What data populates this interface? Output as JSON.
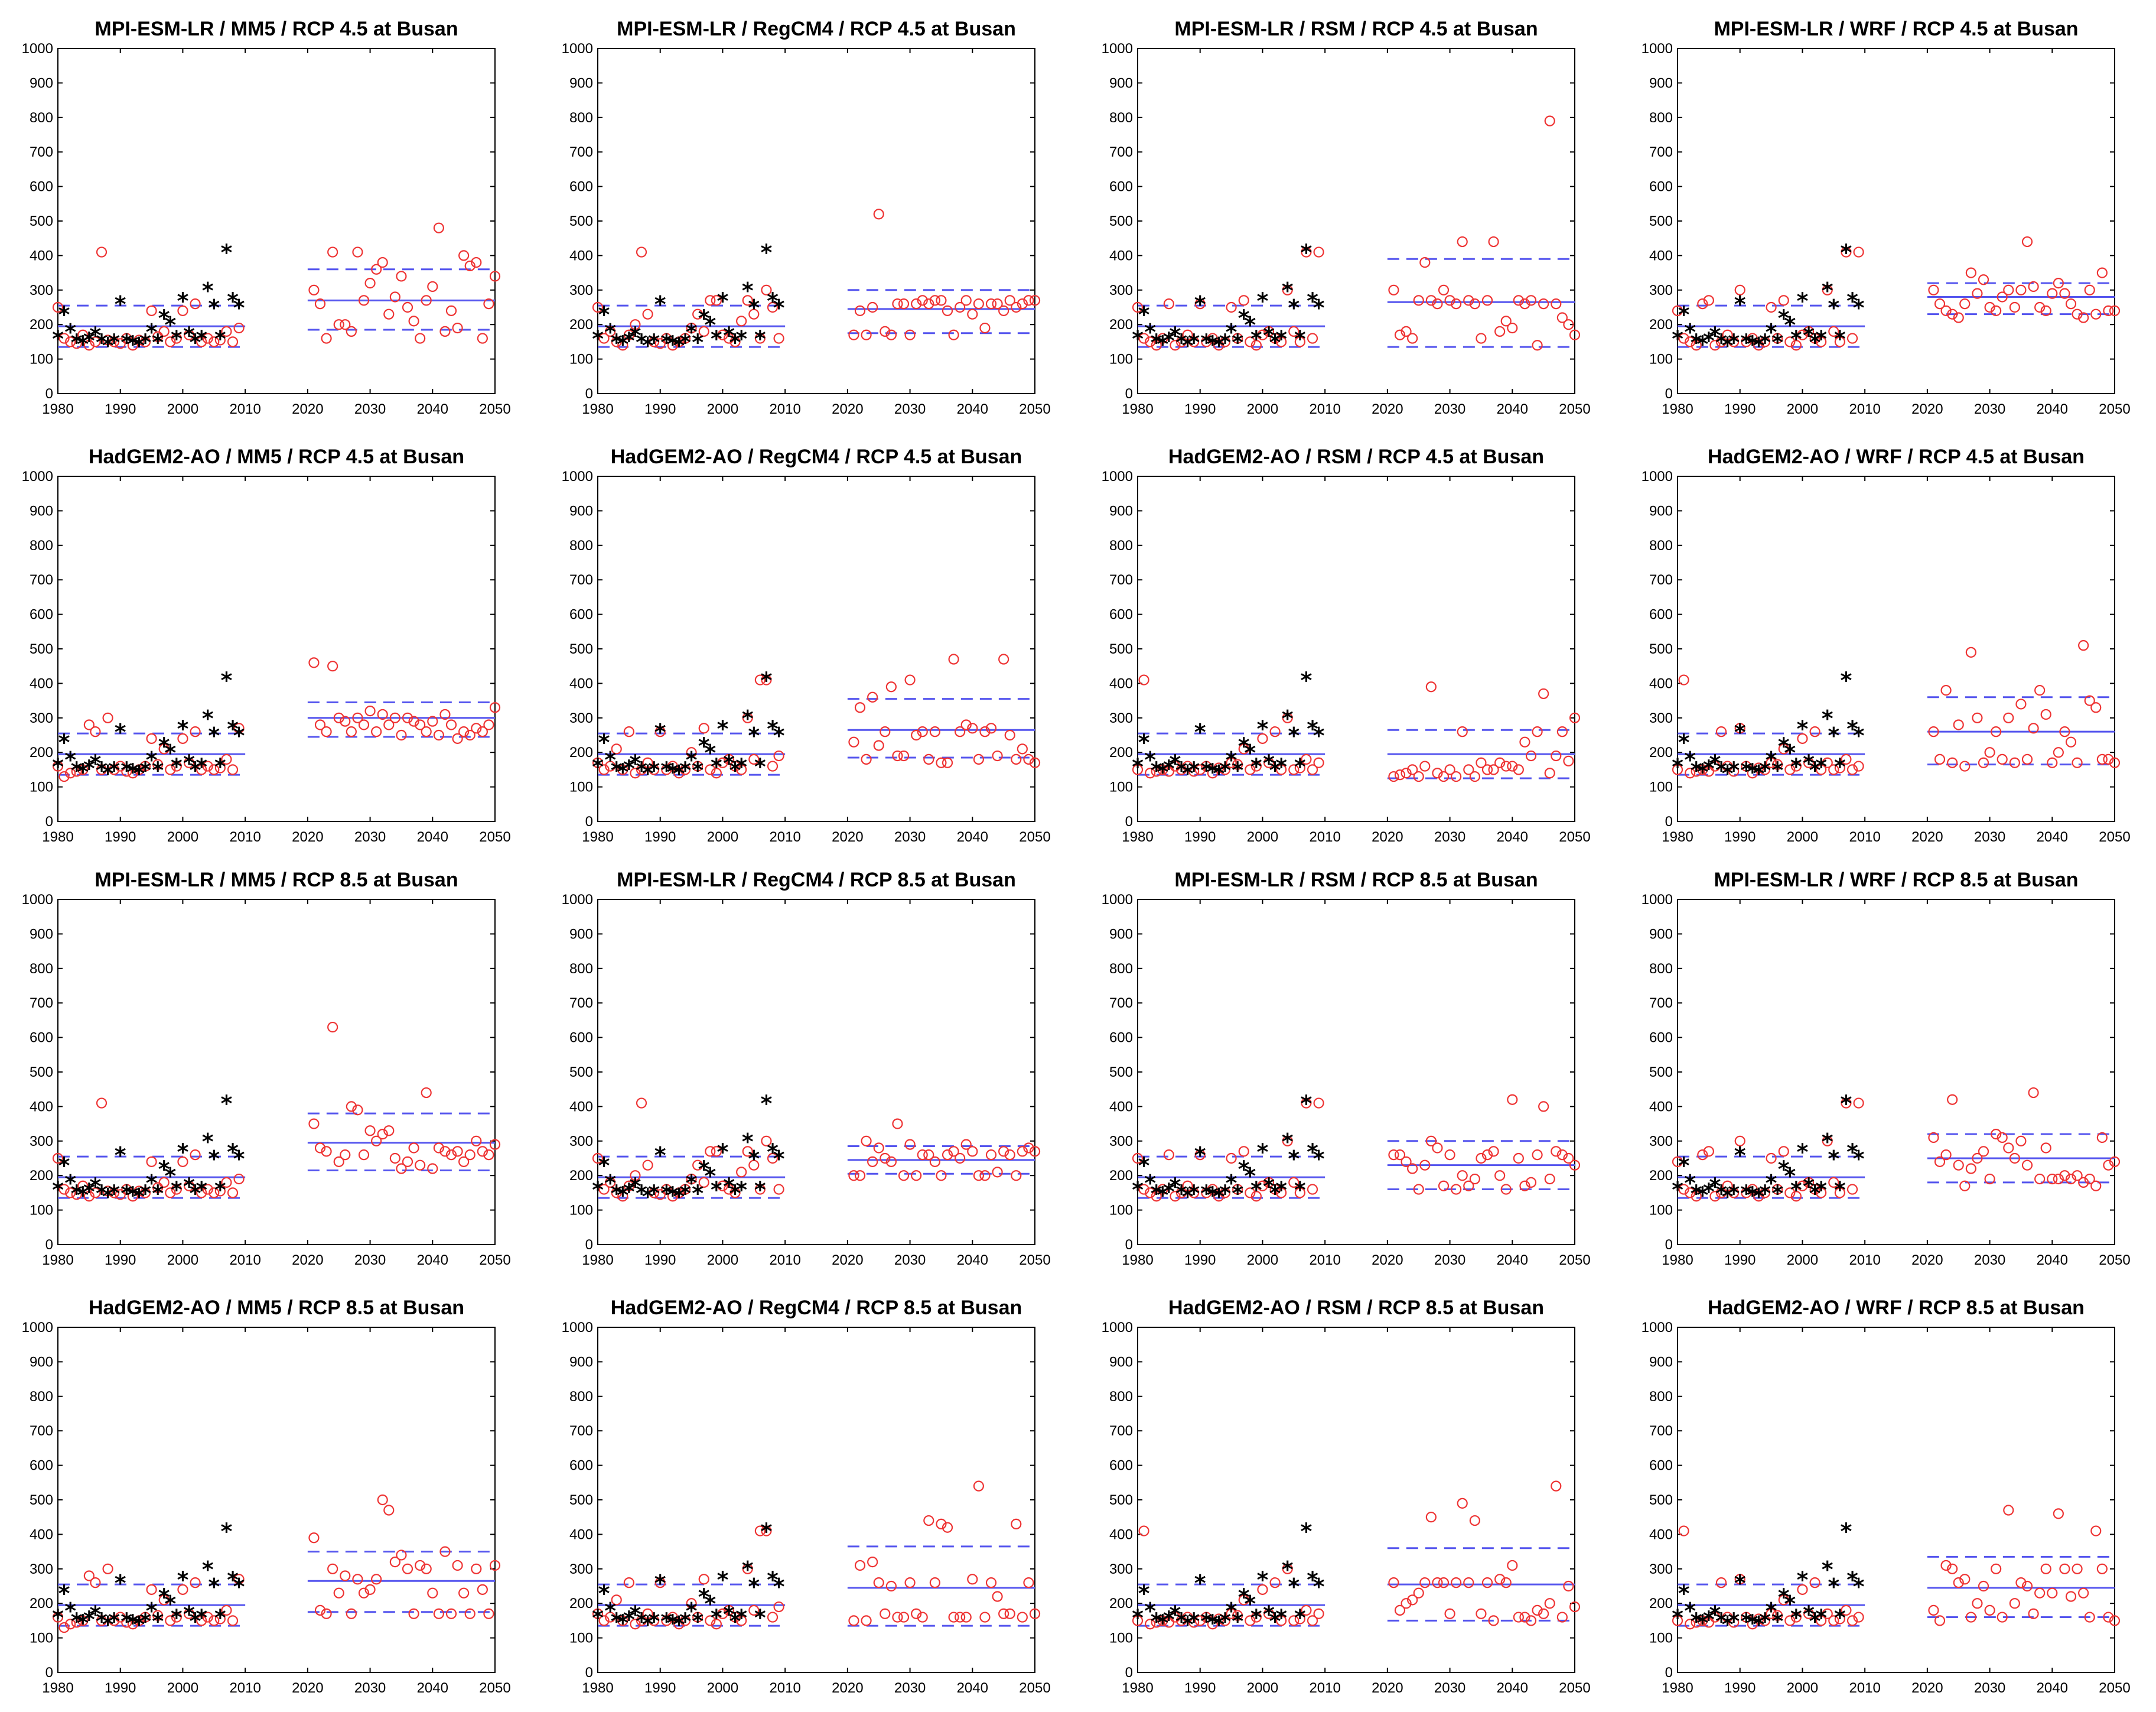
{
  "chart_data": {
    "type": "scatter",
    "grid": false,
    "xlim": [
      1980,
      2050
    ],
    "ylim": [
      0,
      1000
    ],
    "xticks": [
      1980,
      1990,
      2000,
      2010,
      2020,
      2030,
      2040,
      2050
    ],
    "yticks": [
      0,
      100,
      200,
      300,
      400,
      500,
      600,
      700,
      800,
      900,
      1000
    ],
    "observed": {
      "x": [
        1980,
        1981,
        1982,
        1983,
        1984,
        1985,
        1986,
        1987,
        1988,
        1989,
        1990,
        1991,
        1992,
        1993,
        1994,
        1995,
        1996,
        1997,
        1998,
        1999,
        2000,
        2001,
        2002,
        2003,
        2004,
        2005,
        2006,
        2007,
        2008,
        2009
      ],
      "y": [
        160,
        230,
        180,
        150,
        145,
        155,
        170,
        150,
        140,
        150,
        260,
        150,
        145,
        140,
        150,
        180,
        150,
        220,
        200,
        160,
        270,
        170,
        150,
        160,
        300,
        250,
        160,
        410,
        270,
        250
      ],
      "mean": 195,
      "upper": 255,
      "lower": 135
    },
    "panels": [
      {
        "title": "MPI-ESM-LR / MM5 / RCP 4.5 at Busan",
        "hist": [
          250,
          160,
          150,
          145,
          170,
          140,
          150,
          410,
          155,
          150,
          145,
          160,
          140,
          155,
          150,
          240,
          165,
          180,
          150,
          160,
          240,
          170,
          260,
          150,
          160,
          150,
          155,
          180,
          150,
          190
        ],
        "proj": [
          300,
          260,
          160,
          410,
          200,
          200,
          180,
          410,
          270,
          320,
          360,
          380,
          230,
          280,
          340,
          250,
          210,
          160,
          270,
          310,
          480,
          180,
          240,
          190,
          400,
          370,
          380,
          160,
          260,
          340
        ],
        "mean": 270,
        "upper": 360,
        "lower": 185
      },
      {
        "title": "MPI-ESM-LR / RegCM4 / RCP 4.5 at Busan",
        "hist": [
          250,
          160,
          180,
          150,
          140,
          170,
          200,
          410,
          230,
          150,
          145,
          160,
          140,
          150,
          160,
          190,
          230,
          180,
          270,
          270,
          170,
          160,
          150,
          210,
          270,
          230,
          160,
          300,
          250,
          160
        ],
        "proj": [
          170,
          240,
          170,
          250,
          520,
          180,
          170,
          260,
          260,
          170,
          260,
          270,
          260,
          270,
          270,
          240,
          170,
          250,
          270,
          230,
          260,
          190,
          260,
          260,
          240,
          270,
          250,
          260,
          270,
          270
        ],
        "mean": 245,
        "upper": 300,
        "lower": 175
      },
      {
        "title": "MPI-ESM-LR / RSM / RCP 4.5 at Busan",
        "hist": [
          250,
          160,
          150,
          140,
          160,
          260,
          140,
          150,
          170,
          150,
          260,
          150,
          160,
          140,
          150,
          250,
          160,
          270,
          150,
          140,
          170,
          180,
          160,
          150,
          300,
          180,
          150,
          410,
          160,
          410
        ],
        "proj": [
          300,
          170,
          180,
          160,
          270,
          380,
          270,
          260,
          300,
          270,
          260,
          440,
          270,
          260,
          160,
          270,
          440,
          180,
          210,
          190,
          270,
          260,
          270,
          140,
          260,
          790,
          260,
          220,
          200,
          170
        ],
        "mean": 265,
        "upper": 390,
        "lower": 135
      },
      {
        "title": "MPI-ESM-LR / WRF / RCP 4.5 at Busan",
        "hist": [
          240,
          160,
          150,
          140,
          260,
          270,
          140,
          150,
          170,
          150,
          300,
          150,
          160,
          140,
          150,
          250,
          160,
          270,
          150,
          140,
          170,
          180,
          160,
          150,
          300,
          180,
          150,
          410,
          160,
          410
        ],
        "proj": [
          300,
          260,
          240,
          230,
          220,
          260,
          350,
          290,
          330,
          250,
          240,
          280,
          300,
          250,
          300,
          440,
          310,
          250,
          240,
          290,
          320,
          290,
          260,
          230,
          220,
          300,
          230,
          350,
          240,
          240
        ],
        "mean": 280,
        "upper": 320,
        "lower": 230
      },
      {
        "title": "HadGEM2-AO / MM5 / RCP 4.5 at Busan",
        "hist": [
          160,
          130,
          140,
          145,
          150,
          280,
          260,
          150,
          300,
          150,
          160,
          145,
          140,
          150,
          160,
          240,
          165,
          210,
          150,
          160,
          240,
          170,
          260,
          150,
          160,
          150,
          155,
          180,
          150,
          270
        ],
        "proj": [
          460,
          280,
          260,
          450,
          300,
          290,
          260,
          300,
          280,
          320,
          260,
          310,
          280,
          300,
          250,
          300,
          290,
          280,
          260,
          290,
          250,
          310,
          280,
          240,
          260,
          250,
          270,
          260,
          280,
          330
        ],
        "mean": 300,
        "upper": 345,
        "lower": 245
      },
      {
        "title": "HadGEM2-AO / RegCM4 / RCP 4.5 at Busan",
        "hist": [
          170,
          150,
          160,
          210,
          150,
          260,
          140,
          150,
          170,
          150,
          260,
          150,
          160,
          140,
          150,
          200,
          160,
          270,
          150,
          140,
          170,
          180,
          160,
          150,
          300,
          180,
          410,
          410,
          160,
          190
        ],
        "proj": [
          230,
          330,
          180,
          360,
          220,
          260,
          390,
          190,
          190,
          410,
          250,
          260,
          180,
          260,
          170,
          170,
          470,
          260,
          280,
          270,
          180,
          260,
          270,
          190,
          470,
          250,
          180,
          210,
          180,
          170
        ],
        "mean": 265,
        "upper": 355,
        "lower": 185
      },
      {
        "title": "HadGEM2-AO / RSM / RCP 4.5 at Busan",
        "hist": [
          150,
          410,
          140,
          145,
          150,
          145,
          160,
          150,
          160,
          145,
          150,
          160,
          140,
          155,
          150,
          170,
          165,
          210,
          150,
          160,
          240,
          170,
          260,
          150,
          300,
          150,
          155,
          180,
          150,
          170
        ],
        "proj": [
          130,
          135,
          140,
          150,
          130,
          160,
          390,
          140,
          130,
          150,
          130,
          260,
          150,
          130,
          170,
          150,
          150,
          170,
          160,
          160,
          150,
          230,
          190,
          260,
          370,
          140,
          190,
          260,
          175,
          300
        ],
        "mean": 195,
        "upper": 265,
        "lower": 125
      },
      {
        "title": "HadGEM2-AO / WRF / RCP 4.5 at Busan",
        "hist": [
          150,
          410,
          140,
          145,
          150,
          145,
          160,
          260,
          160,
          145,
          270,
          160,
          140,
          155,
          150,
          170,
          165,
          210,
          150,
          160,
          240,
          170,
          260,
          150,
          170,
          150,
          155,
          180,
          150,
          160
        ],
        "proj": [
          260,
          180,
          380,
          170,
          280,
          160,
          490,
          300,
          170,
          200,
          260,
          180,
          300,
          170,
          340,
          180,
          270,
          380,
          310,
          170,
          200,
          260,
          230,
          170,
          510,
          350,
          330,
          180,
          180,
          170
        ],
        "mean": 260,
        "upper": 360,
        "lower": 165
      },
      {
        "title": "MPI-ESM-LR / MM5 / RCP 8.5 at Busan",
        "hist": [
          250,
          160,
          150,
          145,
          170,
          140,
          150,
          410,
          155,
          150,
          145,
          160,
          140,
          155,
          150,
          240,
          165,
          180,
          150,
          160,
          240,
          170,
          260,
          150,
          160,
          150,
          155,
          180,
          150,
          190
        ],
        "proj": [
          350,
          280,
          270,
          630,
          240,
          260,
          400,
          390,
          260,
          330,
          300,
          320,
          330,
          250,
          220,
          240,
          280,
          230,
          440,
          220,
          280,
          270,
          260,
          270,
          240,
          260,
          300,
          270,
          260,
          290
        ],
        "mean": 295,
        "upper": 380,
        "lower": 215
      },
      {
        "title": "MPI-ESM-LR / RegCM4 / RCP 8.5 at Busan",
        "hist": [
          250,
          160,
          180,
          150,
          140,
          170,
          200,
          410,
          230,
          150,
          145,
          160,
          140,
          150,
          160,
          190,
          230,
          180,
          270,
          270,
          170,
          160,
          150,
          210,
          270,
          230,
          160,
          300,
          250,
          160
        ],
        "proj": [
          200,
          200,
          300,
          240,
          280,
          250,
          240,
          350,
          200,
          290,
          200,
          260,
          260,
          240,
          200,
          260,
          270,
          250,
          290,
          270,
          200,
          200,
          260,
          210,
          270,
          260,
          200,
          270,
          280,
          270
        ],
        "mean": 245,
        "upper": 285,
        "lower": 205
      },
      {
        "title": "MPI-ESM-LR / RSM / RCP 8.5 at Busan",
        "hist": [
          250,
          160,
          150,
          140,
          160,
          260,
          140,
          150,
          170,
          150,
          260,
          150,
          160,
          140,
          150,
          250,
          160,
          270,
          150,
          140,
          170,
          180,
          160,
          150,
          300,
          180,
          150,
          410,
          160,
          410
        ],
        "proj": [
          260,
          260,
          240,
          220,
          160,
          230,
          300,
          280,
          170,
          260,
          160,
          200,
          170,
          190,
          250,
          260,
          270,
          200,
          160,
          420,
          250,
          170,
          180,
          260,
          400,
          190,
          270,
          260,
          250,
          230
        ],
        "mean": 230,
        "upper": 300,
        "lower": 160
      },
      {
        "title": "MPI-ESM-LR / WRF / RCP 8.5 at Busan",
        "hist": [
          240,
          160,
          150,
          140,
          260,
          270,
          140,
          150,
          170,
          150,
          300,
          150,
          160,
          140,
          150,
          250,
          160,
          270,
          150,
          140,
          170,
          180,
          160,
          150,
          300,
          180,
          150,
          410,
          160,
          410
        ],
        "proj": [
          310,
          240,
          260,
          420,
          230,
          170,
          220,
          250,
          270,
          190,
          320,
          310,
          280,
          250,
          300,
          230,
          440,
          190,
          280,
          190,
          190,
          200,
          190,
          200,
          180,
          190,
          170,
          310,
          230,
          240
        ],
        "mean": 250,
        "upper": 320,
        "lower": 180
      },
      {
        "title": "HadGEM2-AO / MM5 / RCP 8.5 at Busan",
        "hist": [
          160,
          130,
          140,
          145,
          150,
          280,
          260,
          150,
          300,
          150,
          160,
          145,
          140,
          150,
          160,
          240,
          165,
          210,
          150,
          160,
          240,
          170,
          260,
          150,
          160,
          150,
          155,
          180,
          150,
          270
        ],
        "proj": [
          390,
          180,
          170,
          300,
          230,
          280,
          170,
          270,
          230,
          240,
          270,
          500,
          470,
          320,
          340,
          300,
          170,
          310,
          300,
          230,
          170,
          350,
          170,
          310,
          230,
          170,
          300,
          240,
          170,
          310
        ],
        "mean": 265,
        "upper": 350,
        "lower": 175
      },
      {
        "title": "HadGEM2-AO / RegCM4 / RCP 8.5 at Busan",
        "hist": [
          170,
          150,
          160,
          210,
          150,
          260,
          140,
          150,
          170,
          150,
          260,
          150,
          160,
          140,
          150,
          200,
          160,
          270,
          150,
          140,
          170,
          180,
          160,
          150,
          300,
          180,
          410,
          410,
          160,
          190
        ],
        "proj": [
          150,
          310,
          150,
          320,
          260,
          170,
          250,
          160,
          160,
          260,
          170,
          160,
          440,
          260,
          430,
          420,
          160,
          160,
          160,
          270,
          540,
          160,
          260,
          220,
          170,
          170,
          430,
          160,
          260,
          170
        ],
        "mean": 245,
        "upper": 365,
        "lower": 135
      },
      {
        "title": "HadGEM2-AO / RSM / RCP 8.5 at Busan",
        "hist": [
          150,
          410,
          140,
          145,
          150,
          145,
          160,
          150,
          160,
          145,
          150,
          160,
          140,
          155,
          150,
          170,
          165,
          210,
          150,
          160,
          240,
          170,
          260,
          150,
          300,
          150,
          155,
          180,
          150,
          170
        ],
        "proj": [
          260,
          180,
          200,
          210,
          230,
          260,
          450,
          260,
          260,
          170,
          260,
          490,
          260,
          440,
          170,
          260,
          150,
          270,
          260,
          310,
          160,
          160,
          150,
          180,
          170,
          200,
          540,
          160,
          250,
          190
        ],
        "mean": 255,
        "upper": 360,
        "lower": 150
      },
      {
        "title": "HadGEM2-AO / WRF / RCP 8.5 at Busan",
        "hist": [
          150,
          410,
          140,
          145,
          150,
          145,
          160,
          260,
          160,
          145,
          270,
          160,
          140,
          155,
          150,
          170,
          165,
          210,
          150,
          160,
          240,
          170,
          260,
          150,
          170,
          150,
          155,
          180,
          150,
          160
        ],
        "proj": [
          180,
          150,
          310,
          300,
          260,
          270,
          160,
          200,
          250,
          180,
          300,
          160,
          470,
          200,
          260,
          250,
          170,
          230,
          300,
          230,
          460,
          300,
          220,
          300,
          230,
          160,
          410,
          300,
          160,
          150
        ],
        "mean": 245,
        "upper": 335,
        "lower": 160
      }
    ],
    "colors": {
      "observed": "#000000",
      "projection": "#ee3333",
      "bands": "#5555ee"
    }
  }
}
